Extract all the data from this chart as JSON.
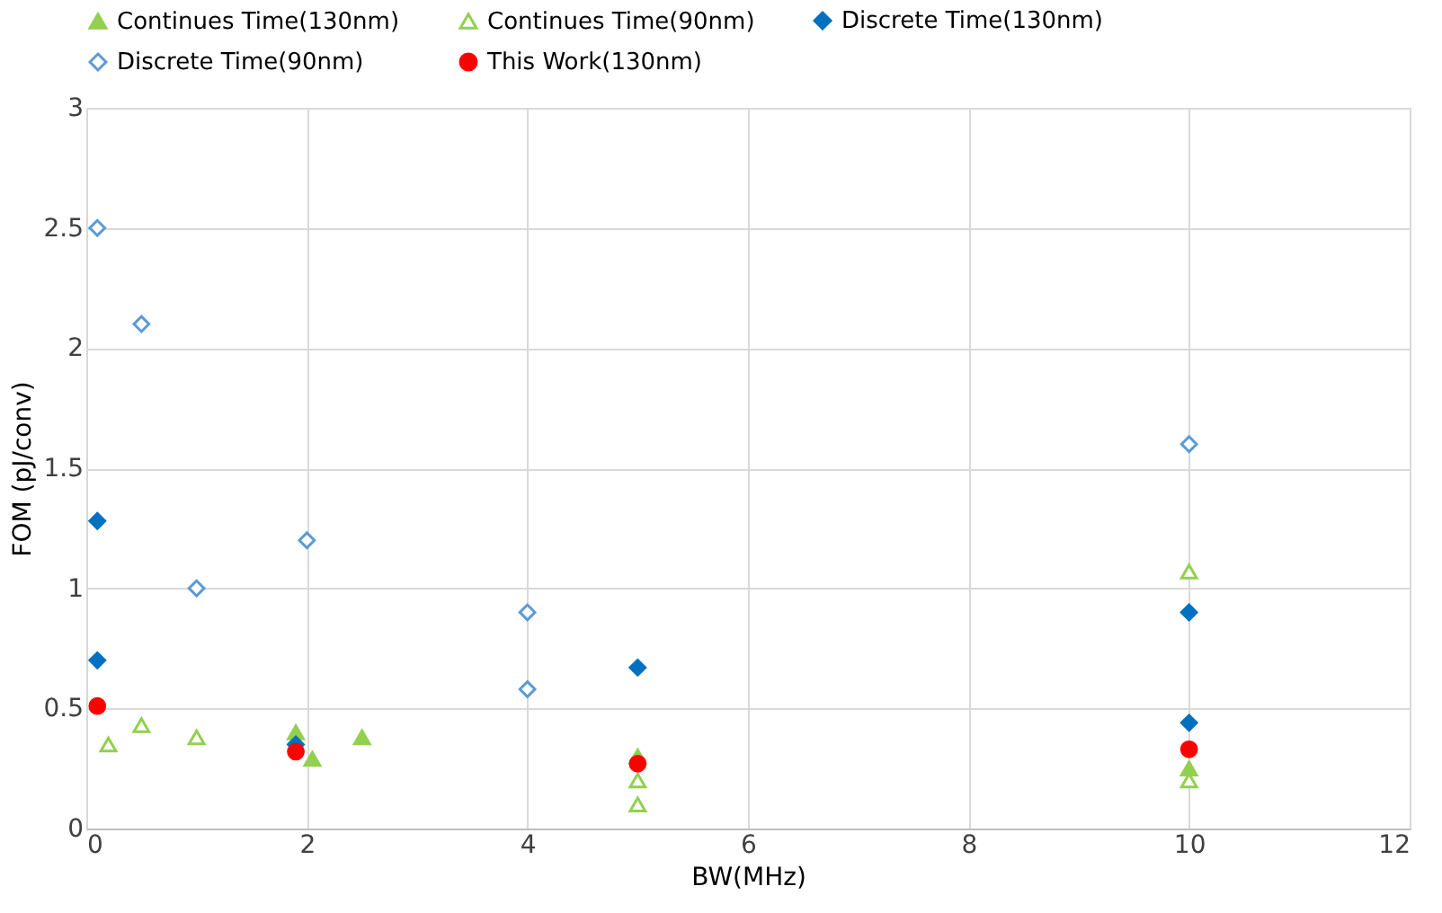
{
  "chart_data": {
    "type": "scatter",
    "xlabel": "BW(MHz)",
    "ylabel": "FOM (pJ/conv)",
    "xlim": [
      0,
      12
    ],
    "xticks": [
      0,
      2,
      4,
      6,
      8,
      10,
      12
    ],
    "ylim": [
      0,
      3
    ],
    "yticks": [
      0,
      0.5,
      1,
      1.5,
      2,
      2.5,
      3
    ],
    "grid": true,
    "legend": "top",
    "series": [
      {
        "name": "Continues Time(130nm)",
        "color": "#92d050",
        "marker": "triangle",
        "x": [
          1.9,
          2.05,
          2.5,
          5,
          10
        ],
        "values": [
          0.4,
          0.29,
          0.38,
          0.3,
          0.25
        ]
      },
      {
        "name": "Continues Time(90nm)",
        "color": "#92d050",
        "marker": "triangle-open",
        "x": [
          0.2,
          0.5,
          1,
          5,
          5,
          10,
          10
        ],
        "values": [
          0.35,
          0.43,
          0.38,
          0.2,
          0.1,
          1.07,
          0.2
        ]
      },
      {
        "name": "Discrete Time(130nm)",
        "color": "#0070c0",
        "marker": "diamond",
        "x": [
          0.1,
          0.1,
          1.9,
          5,
          10,
          10
        ],
        "values": [
          1.28,
          0.7,
          0.35,
          0.67,
          0.9,
          0.44
        ]
      },
      {
        "name": "Discrete Time(90nm)",
        "color": "#5b9bd5",
        "marker": "diamond-open",
        "x": [
          0.1,
          0.5,
          1,
          2,
          4,
          4,
          10
        ],
        "values": [
          2.5,
          2.1,
          1.0,
          1.2,
          0.9,
          0.58,
          1.6
        ]
      },
      {
        "name": "This Work(130nm)",
        "color": "#ff0000",
        "marker": "circle",
        "x": [
          0.1,
          1.9,
          5,
          10
        ],
        "values": [
          0.51,
          0.32,
          0.27,
          0.33
        ]
      }
    ]
  }
}
